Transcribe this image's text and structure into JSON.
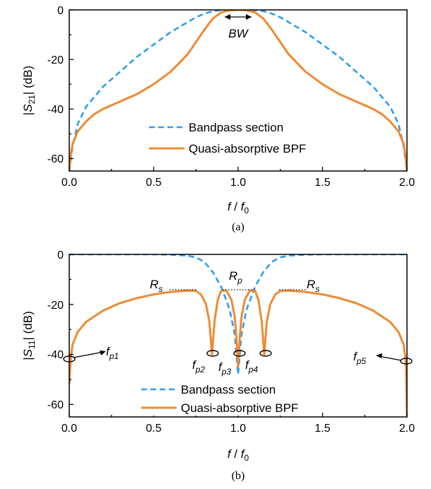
{
  "colors": {
    "bandpass": "#2e9df0",
    "absorptive": "#ef8a33",
    "axis": "#000000"
  },
  "chart_data": [
    {
      "type": "line",
      "caption": "(a)",
      "ylabel": {
        "pre": "|",
        "italic": "S",
        "sub": "21",
        "post": "| (dB)"
      },
      "xlabel": {
        "f": "f",
        "sep": " / ",
        "f0": "f",
        "f0sub": "0"
      },
      "xlim": [
        0,
        2
      ],
      "ylim": [
        -65,
        0
      ],
      "xticks": [
        "0.0",
        "0.5",
        "1.0",
        "1.5",
        "2.0"
      ],
      "yticks": [
        "0",
        "-20",
        "-40",
        "-60"
      ],
      "legend": [
        "Bandpass section",
        "Quasi-absorptive BPF"
      ],
      "annotations": {
        "bw": "BW"
      },
      "series": [
        {
          "name": "Bandpass section",
          "style": "dashed",
          "x": [
            0.0,
            0.01,
            0.02,
            0.05,
            0.1,
            0.2,
            0.3,
            0.4,
            0.5,
            0.6,
            0.7,
            0.75,
            0.8,
            0.85,
            0.9,
            0.95,
            1.0,
            1.05,
            1.1,
            1.15,
            1.2,
            1.25,
            1.3,
            1.4,
            1.5,
            1.6,
            1.7,
            1.8,
            1.9,
            1.95,
            1.98,
            1.99,
            2.0
          ],
          "y": [
            -65,
            -60,
            -55,
            -46,
            -39,
            -31,
            -25,
            -19,
            -14,
            -9,
            -5,
            -3,
            -1.5,
            -0.5,
            -0.1,
            0,
            0,
            0,
            -0.1,
            -0.5,
            -1.5,
            -3,
            -5,
            -9,
            -14,
            -19,
            -25,
            -31,
            -39,
            -46,
            -55,
            -60,
            -65
          ]
        },
        {
          "name": "Quasi-absorptive BPF",
          "style": "solid",
          "x": [
            0.0,
            0.005,
            0.01,
            0.02,
            0.05,
            0.1,
            0.15,
            0.2,
            0.3,
            0.4,
            0.5,
            0.6,
            0.7,
            0.75,
            0.8,
            0.85,
            0.9,
            0.95,
            1.0,
            1.05,
            1.1,
            1.15,
            1.2,
            1.25,
            1.3,
            1.4,
            1.5,
            1.6,
            1.7,
            1.8,
            1.85,
            1.9,
            1.95,
            1.98,
            1.99,
            1.995,
            2.0
          ],
          "y": [
            -65,
            -62,
            -58,
            -54,
            -49,
            -45,
            -42,
            -40,
            -37,
            -34,
            -30,
            -25,
            -18,
            -13,
            -8,
            -3.5,
            -1,
            -0.2,
            0,
            -0.2,
            -1,
            -3.5,
            -8,
            -13,
            -18,
            -25,
            -30,
            -34,
            -37,
            -40,
            -42,
            -45,
            -49,
            -54,
            -58,
            -62,
            -65
          ]
        }
      ]
    },
    {
      "type": "line",
      "caption": "(b)",
      "ylabel": {
        "pre": "|",
        "italic": "S",
        "sub": "11",
        "post": "| (dB)"
      },
      "xlabel": {
        "f": "f",
        "sep": " / ",
        "f0": "f",
        "f0sub": "0"
      },
      "xlim": [
        0,
        2
      ],
      "ylim": [
        -65,
        0
      ],
      "xticks": [
        "0.0",
        "0.5",
        "1.0",
        "1.5",
        "2.0"
      ],
      "yticks": [
        "0",
        "-20",
        "-40",
        "-60"
      ],
      "legend": [
        "Bandpass section",
        "Quasi-absorptive BPF"
      ],
      "annotations": {
        "rs_left": {
          "main": "R",
          "sub": "s"
        },
        "rp": {
          "main": "R",
          "sub": "p"
        },
        "rs_right": {
          "main": "R",
          "sub": "s"
        },
        "fp1": {
          "main": "f",
          "sub": "p1"
        },
        "fp2": {
          "main": "f",
          "sub": "p2"
        },
        "fp3": {
          "main": "f",
          "sub": "p3"
        },
        "fp4": {
          "main": "f",
          "sub": "p4"
        },
        "fp5": {
          "main": "f",
          "sub": "p5"
        }
      },
      "series": [
        {
          "name": "Bandpass section",
          "style": "dashed",
          "x": [
            0.0,
            0.5,
            0.6,
            0.7,
            0.75,
            0.8,
            0.85,
            0.9,
            0.95,
            0.98,
            1.0,
            1.02,
            1.05,
            1.1,
            1.15,
            1.2,
            1.25,
            1.3,
            1.4,
            1.5,
            2.0
          ],
          "y": [
            0,
            0,
            -0.1,
            -0.5,
            -1.2,
            -3,
            -7,
            -13,
            -22,
            -32,
            -48,
            -32,
            -22,
            -13,
            -7,
            -3,
            -1.2,
            -0.5,
            -0.1,
            0,
            0
          ]
        },
        {
          "name": "Quasi-absorptive BPF",
          "style": "solid",
          "x": [
            0.0,
            0.005,
            0.01,
            0.02,
            0.05,
            0.1,
            0.2,
            0.3,
            0.4,
            0.5,
            0.6,
            0.7,
            0.75,
            0.78,
            0.81,
            0.83,
            0.845,
            0.86,
            0.88,
            0.9,
            0.93,
            0.96,
            0.98,
            0.99,
            1.0,
            1.01,
            1.02,
            1.04,
            1.07,
            1.1,
            1.12,
            1.14,
            1.155,
            1.17,
            1.19,
            1.22,
            1.25,
            1.3,
            1.4,
            1.5,
            1.6,
            1.7,
            1.8,
            1.9,
            1.95,
            1.98,
            1.99,
            1.995,
            2.0
          ],
          "y": [
            -52,
            -46,
            -41,
            -36,
            -31,
            -27,
            -22.5,
            -19.5,
            -17.5,
            -16,
            -15,
            -14.5,
            -14.6,
            -16,
            -20,
            -27,
            -40,
            -27,
            -18,
            -14.5,
            -14.5,
            -18,
            -25,
            -33,
            -45,
            -33,
            -25,
            -18,
            -14.5,
            -14.5,
            -18,
            -27,
            -40,
            -27,
            -20,
            -16,
            -14.6,
            -14.5,
            -15,
            -16,
            -17.5,
            -19.5,
            -22.5,
            -27,
            -31,
            -36,
            -41,
            -46,
            -65
          ]
        }
      ]
    }
  ]
}
